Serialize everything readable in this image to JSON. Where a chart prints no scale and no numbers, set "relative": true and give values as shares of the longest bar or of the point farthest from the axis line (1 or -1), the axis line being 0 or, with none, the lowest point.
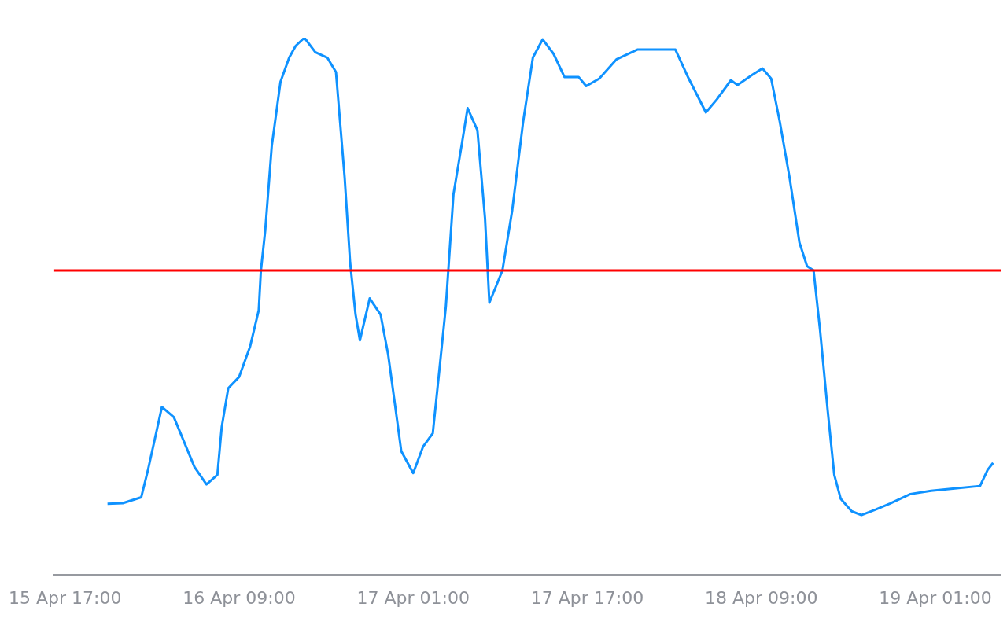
{
  "chart_data": {
    "type": "line",
    "relative": true,
    "marker": "none",
    "line_style": "solid",
    "xlim": [
      "--04-15T16:00",
      "--04-19T07:00"
    ],
    "xticks": [
      {
        "value": "--04-15T17:00",
        "label": "15 Apr 17:00"
      },
      {
        "value": "--04-16T09:00",
        "label": "16 Apr 09:00"
      },
      {
        "value": "--04-17T01:00",
        "label": "17 Apr 01:00"
      },
      {
        "value": "--04-17T17:00",
        "label": "17 Apr 17:00"
      },
      {
        "value": "--04-18T09:00",
        "label": "18 Apr 09:00"
      },
      {
        "value": "--04-19T01:00",
        "label": "19 Apr 01:00"
      }
    ],
    "series": [
      {
        "color": "#0f92ff",
        "x": [
          "--04-15T20:54",
          "--04-15T22:18",
          "--04-16T00:00",
          "--04-16T00:36",
          "--04-16T01:54",
          "--04-16T03:00",
          "--04-16T04:54",
          "--04-16T06:00",
          "--04-16T07:00",
          "--04-16T07:24",
          "--04-16T08:00",
          "--04-16T09:00",
          "--04-16T10:00",
          "--04-16T10:48",
          "--04-16T11:00",
          "--04-16T11:24",
          "--04-16T12:00",
          "--04-16T12:48",
          "--04-16T13:36",
          "--04-16T14:12",
          "--04-16T15:00",
          "--04-16T16:00",
          "--04-16T17:06",
          "--04-16T17:54",
          "--04-16T18:42",
          "--04-16T19:12",
          "--04-16T19:42",
          "--04-16T20:06",
          "--04-16T21:00",
          "--04-16T22:00",
          "--04-16T22:42",
          "--04-16T23:18",
          "--04-16T23:54",
          "--04-17T01:00",
          "--04-17T01:54",
          "--04-17T02:48",
          "--04-17T03:24",
          "--04-17T04:00",
          "--04-17T04:42",
          "--04-17T05:30",
          "--04-17T06:00",
          "--04-17T06:54",
          "--04-17T07:36",
          "--04-17T08:00",
          "--04-17T09:12",
          "--04-17T10:06",
          "--04-17T11:06",
          "--04-17T12:00",
          "--04-17T12:54",
          "--04-17T13:54",
          "--04-17T14:54",
          "--04-17T16:12",
          "--04-17T16:54",
          "--04-17T18:06",
          "--04-17T19:42",
          "--04-17T21:36",
          "--04-18T01:06",
          "--04-18T02:18",
          "--04-18T03:54",
          "--04-18T04:54",
          "--04-18T06:12",
          "--04-18T06:48",
          "--04-18T08:06",
          "--04-18T09:06",
          "--04-18T09:54",
          "--04-18T10:42",
          "--04-18T11:36",
          "--04-18T12:30",
          "--04-18T13:12",
          "--04-18T13:48",
          "--04-18T14:24",
          "--04-18T15:06",
          "--04-18T15:42",
          "--04-18T16:18",
          "--04-18T17:18",
          "--04-18T18:12",
          "--04-18T19:30",
          "--04-18T20:48",
          "--04-18T22:42",
          "--04-19T00:36",
          "--04-19T02:36",
          "--04-19T05:06",
          "--04-19T05:48",
          "--04-19T06:18"
        ],
        "values": [
          0.133,
          0.134,
          0.145,
          0.194,
          0.313,
          0.294,
          0.201,
          0.169,
          0.187,
          0.276,
          0.348,
          0.369,
          0.425,
          0.493,
          0.567,
          0.642,
          0.799,
          0.918,
          0.963,
          0.985,
          1.0,
          0.973,
          0.963,
          0.936,
          0.739,
          0.582,
          0.485,
          0.437,
          0.515,
          0.485,
          0.41,
          0.321,
          0.231,
          0.19,
          0.239,
          0.264,
          0.381,
          0.5,
          0.709,
          0.806,
          0.869,
          0.828,
          0.664,
          0.507,
          0.567,
          0.679,
          0.843,
          0.963,
          0.997,
          0.97,
          0.927,
          0.927,
          0.91,
          0.924,
          0.96,
          0.978,
          0.978,
          0.925,
          0.861,
          0.885,
          0.921,
          0.912,
          0.93,
          0.943,
          0.924,
          0.843,
          0.739,
          0.619,
          0.575,
          0.567,
          0.455,
          0.306,
          0.187,
          0.142,
          0.119,
          0.112,
          0.122,
          0.133,
          0.151,
          0.157,
          0.161,
          0.166,
          0.196,
          0.209
        ]
      }
    ],
    "ref_lines": [
      {
        "axis": "y",
        "value": 0.567,
        "color": "#ff0000",
        "line_style": "solid"
      }
    ]
  }
}
